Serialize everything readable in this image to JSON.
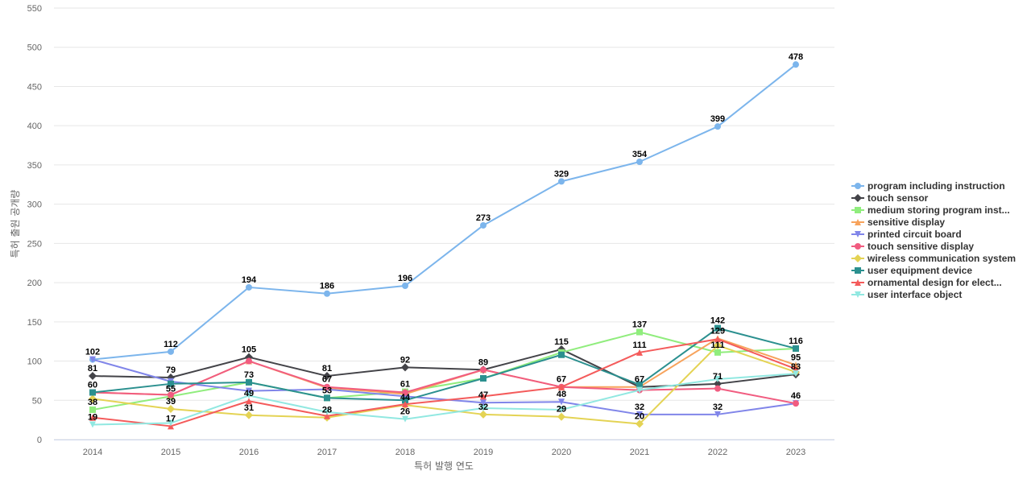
{
  "chart_data": {
    "type": "line",
    "title": "",
    "xlabel": "특허 발행 연도",
    "ylabel": "특허 출원 공개량",
    "x": [
      "2014",
      "2015",
      "2016",
      "2017",
      "2018",
      "2019",
      "2020",
      "2021",
      "2022",
      "2023"
    ],
    "ylim": [
      0,
      550
    ],
    "yticks": [
      0,
      50,
      100,
      150,
      200,
      250,
      300,
      350,
      400,
      450,
      500,
      550
    ],
    "grid": true,
    "legend_position": "right",
    "series": [
      {
        "name": "program including instruction",
        "color": "#7cb5ec",
        "marker": "circle",
        "values": [
          102,
          112,
          194,
          186,
          196,
          273,
          329,
          354,
          399,
          478
        ]
      },
      {
        "name": "touch sensor",
        "color": "#434348",
        "marker": "diamond",
        "values": [
          81,
          79,
          105,
          81,
          92,
          89,
          115,
          67,
          71,
          83
        ]
      },
      {
        "name": "medium storing program inst...",
        "color": "#90ed7d",
        "marker": "square",
        "values": [
          38,
          55,
          73,
          53,
          61,
          78,
          111,
          137,
          111,
          116
        ]
      },
      {
        "name": "sensitive display",
        "color": "#f7a35c",
        "marker": "triangle",
        "values": [
          60,
          57,
          100,
          66,
          58,
          89,
          67,
          67,
          129,
          95
        ]
      },
      {
        "name": "printed circuit board",
        "color": "#8085e9",
        "marker": "triangle-down",
        "values": [
          102,
          74,
          62,
          64,
          55,
          47,
          48,
          32,
          32,
          46
        ]
      },
      {
        "name": "touch sensitive display",
        "color": "#f15c80",
        "marker": "circle",
        "values": [
          60,
          57,
          100,
          67,
          60,
          89,
          67,
          63,
          65,
          46
        ]
      },
      {
        "name": "wireless communication system",
        "color": "#e4d354",
        "marker": "diamond",
        "values": [
          52,
          39,
          31,
          28,
          44,
          32,
          29,
          20,
          120,
          86
        ]
      },
      {
        "name": "user equipment device",
        "color": "#2b908f",
        "marker": "square",
        "values": [
          60,
          71,
          73,
          53,
          50,
          78,
          108,
          70,
          142,
          116
        ]
      },
      {
        "name": "ornamental design for elect...",
        "color": "#f45b5b",
        "marker": "triangle",
        "values": [
          28,
          17,
          49,
          30,
          45,
          55,
          67,
          111,
          128,
          90
        ]
      },
      {
        "name": "user interface object",
        "color": "#91e8e1",
        "marker": "triangle-down",
        "values": [
          19,
          21,
          56,
          35,
          26,
          40,
          38,
          63,
          77,
          84
        ]
      }
    ],
    "data_labels": [
      {
        "x": "2014",
        "text": "102",
        "value": 102
      },
      {
        "x": "2014",
        "text": "81",
        "value": 81
      },
      {
        "x": "2014",
        "text": "60",
        "value": 60
      },
      {
        "x": "2014",
        "text": "38",
        "value": 38
      },
      {
        "x": "2014",
        "text": "19",
        "value": 19
      },
      {
        "x": "2015",
        "text": "112",
        "value": 112
      },
      {
        "x": "2015",
        "text": "79",
        "value": 79
      },
      {
        "x": "2015",
        "text": "55",
        "value": 55
      },
      {
        "x": "2015",
        "text": "39",
        "value": 39
      },
      {
        "x": "2015",
        "text": "17",
        "value": 17
      },
      {
        "x": "2016",
        "text": "194",
        "value": 194
      },
      {
        "x": "2016",
        "text": "105",
        "value": 105
      },
      {
        "x": "2016",
        "text": "73",
        "value": 73
      },
      {
        "x": "2016",
        "text": "49",
        "value": 49
      },
      {
        "x": "2016",
        "text": "31",
        "value": 31
      },
      {
        "x": "2017",
        "text": "186",
        "value": 186
      },
      {
        "x": "2017",
        "text": "81",
        "value": 81
      },
      {
        "x": "2017",
        "text": "67",
        "value": 67
      },
      {
        "x": "2017",
        "text": "53",
        "value": 53
      },
      {
        "x": "2017",
        "text": "28",
        "value": 28
      },
      {
        "x": "2018",
        "text": "196",
        "value": 196
      },
      {
        "x": "2018",
        "text": "92",
        "value": 92
      },
      {
        "x": "2018",
        "text": "61",
        "value": 61
      },
      {
        "x": "2018",
        "text": "44",
        "value": 44
      },
      {
        "x": "2018",
        "text": "26",
        "value": 26
      },
      {
        "x": "2019",
        "text": "273",
        "value": 273
      },
      {
        "x": "2019",
        "text": "89",
        "value": 89
      },
      {
        "x": "2019",
        "text": "47",
        "value": 47
      },
      {
        "x": "2019",
        "text": "32",
        "value": 32
      },
      {
        "x": "2020",
        "text": "329",
        "value": 329
      },
      {
        "x": "2020",
        "text": "115",
        "value": 115
      },
      {
        "x": "2020",
        "text": "67",
        "value": 67
      },
      {
        "x": "2020",
        "text": "48",
        "value": 48
      },
      {
        "x": "2020",
        "text": "29",
        "value": 29
      },
      {
        "x": "2021",
        "text": "354",
        "value": 354
      },
      {
        "x": "2021",
        "text": "137",
        "value": 137
      },
      {
        "x": "2021",
        "text": "111",
        "value": 111
      },
      {
        "x": "2021",
        "text": "67",
        "value": 67
      },
      {
        "x": "2021",
        "text": "32",
        "value": 32
      },
      {
        "x": "2021",
        "text": "20",
        "value": 20
      },
      {
        "x": "2022",
        "text": "399",
        "value": 399
      },
      {
        "x": "2022",
        "text": "142",
        "value": 142
      },
      {
        "x": "2022",
        "text": "129",
        "value": 129
      },
      {
        "x": "2022",
        "text": "111",
        "value": 111
      },
      {
        "x": "2022",
        "text": "71",
        "value": 71
      },
      {
        "x": "2022",
        "text": "32",
        "value": 32
      },
      {
        "x": "2023",
        "text": "478",
        "value": 478
      },
      {
        "x": "2023",
        "text": "116",
        "value": 116
      },
      {
        "x": "2023",
        "text": "95",
        "value": 95
      },
      {
        "x": "2023",
        "text": "83",
        "value": 83
      },
      {
        "x": "2023",
        "text": "46",
        "value": 46
      }
    ]
  }
}
